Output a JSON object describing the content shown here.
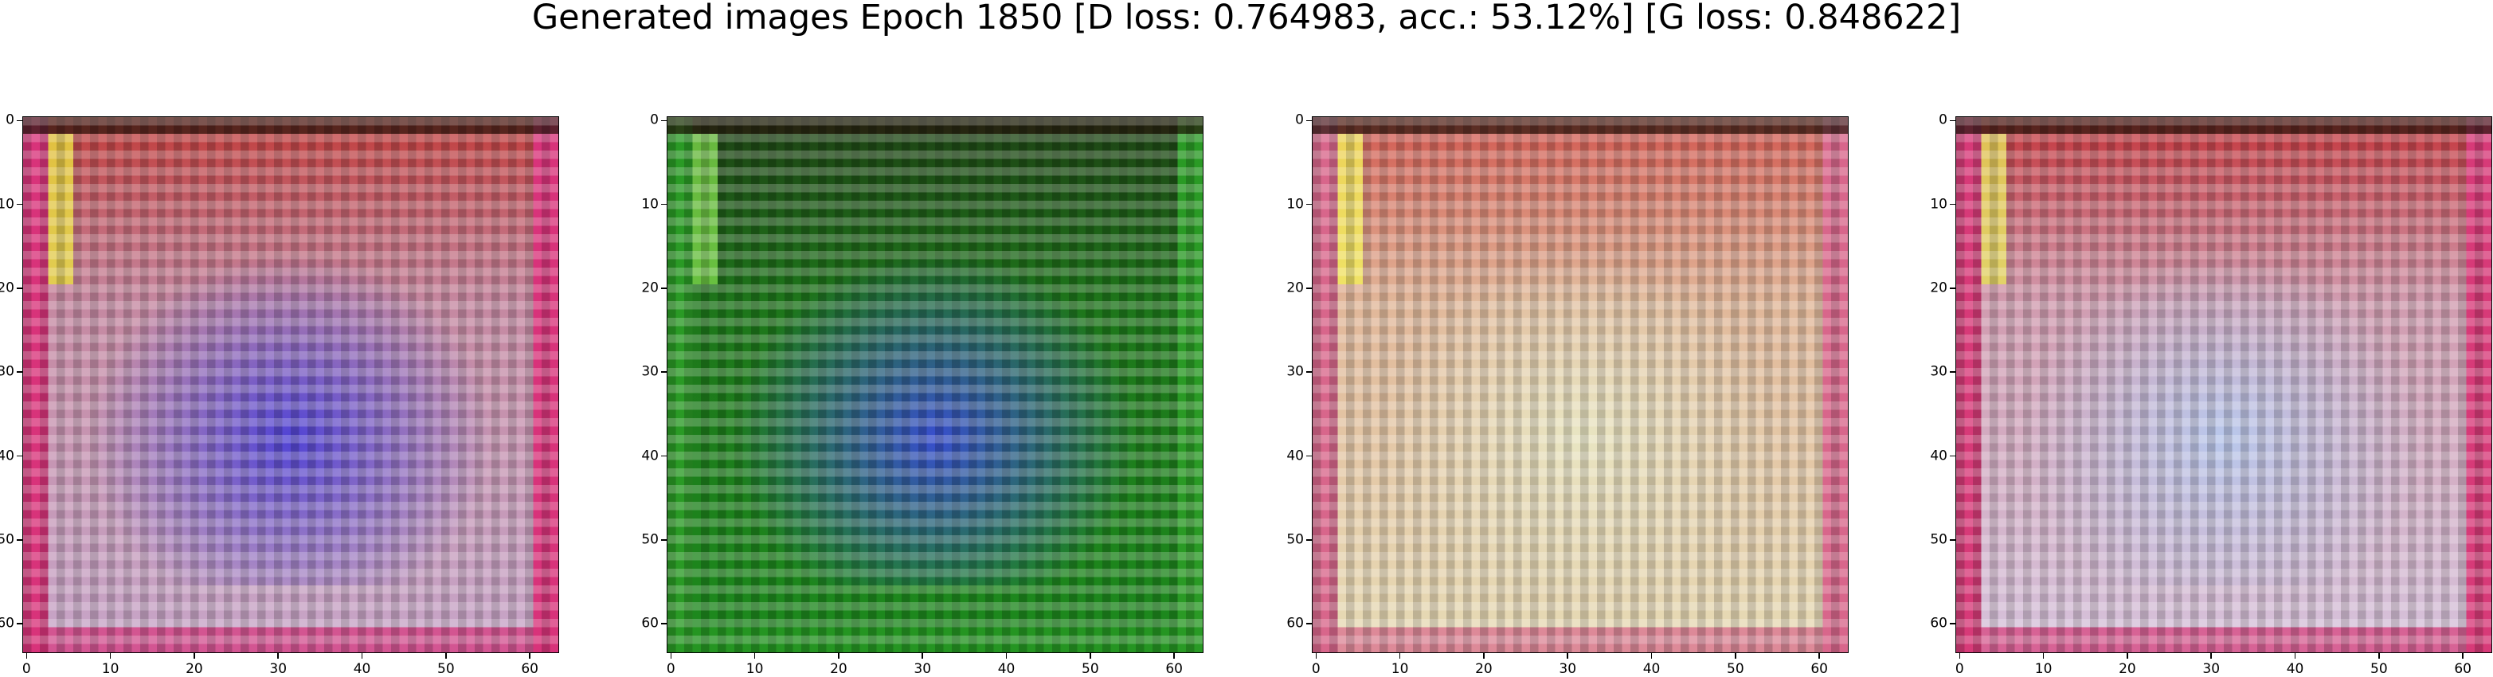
{
  "title": "Generated images Epoch 1850 [D loss: 0.764983, acc.: 53.12%] [G loss: 0.848622]",
  "axis": {
    "x_ticks": [
      "0",
      "10",
      "20",
      "30",
      "40",
      "50",
      "60"
    ],
    "y_ticks": [
      "0",
      "10",
      "20",
      "30",
      "40",
      "50",
      "60"
    ],
    "tick_values": [
      0,
      10,
      20,
      30,
      40,
      50,
      60
    ],
    "image_size": 64
  },
  "panels": [
    {
      "name": "generated-image-1",
      "description_colors": {
        "base": "#c7a6c9",
        "center": "#4a3fd6",
        "border": "#d8337a",
        "top": "#c0302a",
        "accent": "#e8e040"
      }
    },
    {
      "name": "generated-image-2",
      "description_colors": {
        "base": "#1d8a1d",
        "center": "#3a4cd8",
        "border": "#2a9a25",
        "top": "#1f3a14",
        "accent": "#7bd44a"
      }
    },
    {
      "name": "generated-image-3",
      "description_colors": {
        "base": "#e7dcb6",
        "center": "#e9e7c4",
        "border": "#d8668b",
        "top": "#cf4a45",
        "accent": "#f2ef5a"
      }
    },
    {
      "name": "generated-image-4",
      "description_colors": {
        "base": "#d6c3dc",
        "center": "#b7c9ee",
        "border": "#d73a78",
        "top": "#c2262a",
        "accent": "#e6e25a"
      }
    }
  ]
}
